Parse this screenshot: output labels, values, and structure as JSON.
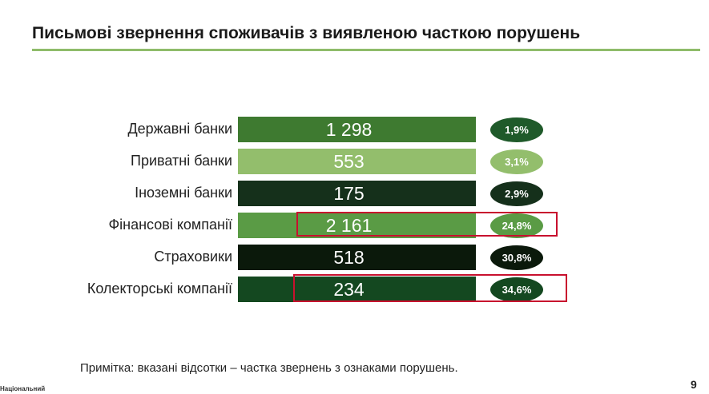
{
  "slide": {
    "title": "Письмові звернення споживачів з виявленою часткою порушень",
    "footnote": "Примітка: вказані відсотки – частка звернень з ознаками порушень.",
    "brand": "Національний",
    "page_number": "9"
  },
  "colors": {
    "title_rule": "#8fbc6a",
    "highlight_border": "#c8102e"
  },
  "chart_data": {
    "type": "bar",
    "orientation": "horizontal",
    "title": "Письмові звернення споживачів з виявленою часткою порушень",
    "categories": [
      "Державні банки",
      "Приватні банки",
      "Іноземні банки",
      "Фінансові компанії",
      "Страховики",
      "Колекторські компанії"
    ],
    "values": [
      1298,
      553,
      175,
      2161,
      518,
      234
    ],
    "value_labels": [
      "1 298",
      "553",
      "175",
      "2 161",
      "518",
      "234"
    ],
    "share_values": [
      1.9,
      3.1,
      2.9,
      24.8,
      30.8,
      34.6
    ],
    "share_labels": [
      "1,9%",
      "3,1%",
      "2,9%",
      "24,8%",
      "30,8%",
      "34,6%"
    ],
    "bar_colors": [
      "#3e7a30",
      "#93be6c",
      "#15301b",
      "#5a9b45",
      "#0b190b",
      "#144820"
    ],
    "highlighted": [
      false,
      false,
      false,
      true,
      false,
      true
    ],
    "grid": false,
    "legend": "none"
  }
}
